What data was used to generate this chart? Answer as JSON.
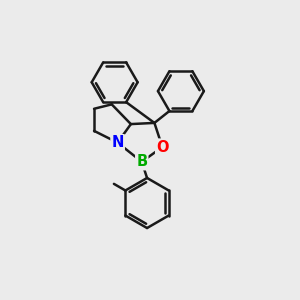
{
  "bg_color": "#ebebeb",
  "bond_color": "#1a1a1a",
  "N_color": "#0000ff",
  "O_color": "#ff0000",
  "B_color": "#00aa00",
  "line_width": 1.8,
  "figsize": [
    3.0,
    3.0
  ],
  "dpi": 100,
  "xlim": [
    0,
    10
  ],
  "ylim": [
    0,
    10
  ]
}
